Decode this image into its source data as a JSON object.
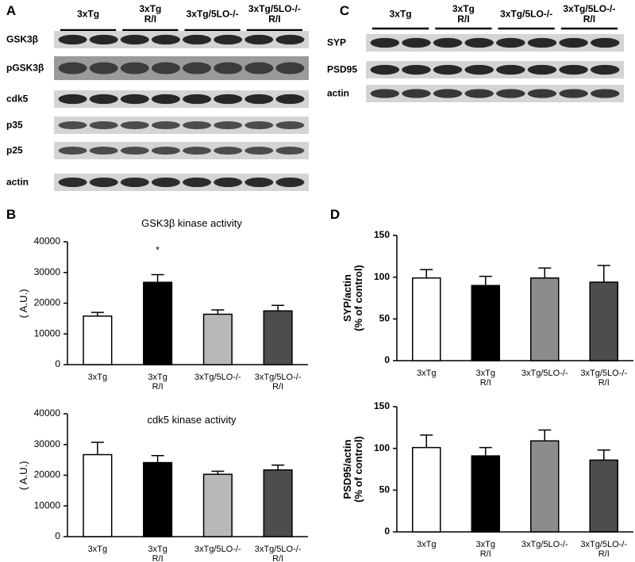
{
  "panels": [
    "A",
    "B",
    "C",
    "D"
  ],
  "blots": [
    {
      "panel": "A",
      "groups": [
        "3xTg",
        "3xTg\nR/I",
        "3xTg/5LO-/-",
        "3xTg/5LO-/-\nR/I"
      ],
      "rows": [
        "GSK3β",
        "pGSK3β",
        "cdk5",
        "p35",
        "p25",
        "actin"
      ]
    },
    {
      "panel": "C",
      "groups": [
        "3xTg",
        "3xTg\nR/I",
        "3xTg/5LO-/-",
        "3xTg/5LO-/-\nR/I"
      ],
      "rows": [
        "SYP",
        "PSD95",
        "actin"
      ]
    }
  ],
  "chart_data": [
    {
      "type": "bar",
      "title": "GSK3β kinase activity",
      "ylabel": "( A.U.)",
      "categories": [
        "3xTg",
        "3xTg\nR/I",
        "3xTg/5LO-/-",
        "3xTg/5LO-/-\nR/I"
      ],
      "values": [
        15800,
        26800,
        16400,
        17500
      ],
      "errors": [
        1200,
        2500,
        1400,
        1800
      ],
      "colors": [
        "#ffffff",
        "#000000",
        "#b8b8b8",
        "#4d4d4d"
      ],
      "ylim": [
        0,
        40000
      ],
      "yticks": [
        0,
        10000,
        20000,
        30000,
        40000
      ],
      "annotations": [
        {
          "text": "*",
          "x": "3xTg\nR/I"
        }
      ]
    },
    {
      "type": "bar",
      "title": "cdk5 kinase activity",
      "ylabel": "( A.U.)",
      "categories": [
        "3xTg",
        "3xTg\nR/I",
        "3xTg/5LO-/-",
        "3xTg/5LO-/-\nR/I"
      ],
      "values": [
        26700,
        24100,
        20300,
        21700
      ],
      "errors": [
        4000,
        2300,
        1000,
        1600
      ],
      "colors": [
        "#ffffff",
        "#000000",
        "#b8b8b8",
        "#4d4d4d"
      ],
      "ylim": [
        0,
        40000
      ],
      "yticks": [
        0,
        10000,
        20000,
        30000,
        40000
      ]
    },
    {
      "type": "bar",
      "ylabel": "SYP/actin\n(% of control)",
      "categories": [
        "3xTg",
        "3xTg\nR/I",
        "3xTg/5LO-/-",
        "3xTg/5LO-/-\nR/I"
      ],
      "values": [
        99,
        90,
        99,
        94
      ],
      "errors": [
        10,
        11,
        12,
        20
      ],
      "colors": [
        "#ffffff",
        "#000000",
        "#8c8c8c",
        "#4d4d4d"
      ],
      "ylim": [
        0,
        150
      ],
      "yticks": [
        0,
        50,
        100,
        150
      ]
    },
    {
      "type": "bar",
      "ylabel": "PSD95/actin\n(% of control)",
      "categories": [
        "3xTg",
        "3xTg\nR/I",
        "3xTg/5LO-/-",
        "3xTg/5LO-/-\nR/I"
      ],
      "values": [
        101,
        91,
        109,
        86
      ],
      "errors": [
        15,
        10,
        13,
        12
      ],
      "colors": [
        "#ffffff",
        "#000000",
        "#8c8c8c",
        "#4d4d4d"
      ],
      "ylim": [
        0,
        150
      ],
      "yticks": [
        0,
        50,
        100,
        150
      ]
    }
  ]
}
